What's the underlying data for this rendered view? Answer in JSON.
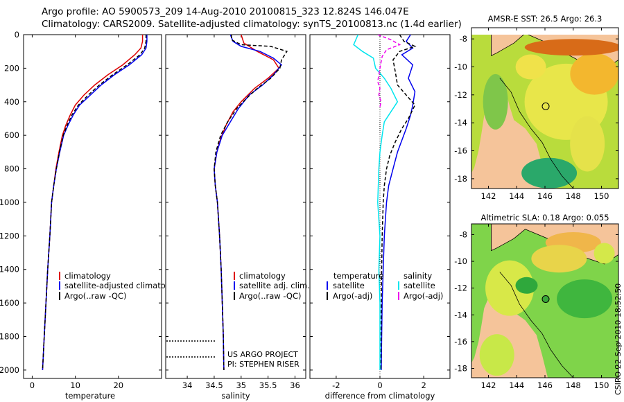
{
  "header": {
    "title_line1": "Argo profile: AO 5900573_209 14-Aug-2010 20100815_323 12.824S 146.047E",
    "title_line2": "Climatology: CARS2009. Satellite-adjusted climatology: synTS_20100813.nc (1.4d earlier)"
  },
  "credit": "CSIRO 22-Sep-2010 18:52:50",
  "depth_axis": {
    "range": [
      0,
      2050
    ],
    "ticks": [
      0,
      200,
      400,
      600,
      800,
      1000,
      1200,
      1400,
      1600,
      1800,
      2000
    ]
  },
  "colors": {
    "climatology": "#dd0000",
    "satellite": "#0000ee",
    "argo": "#000000",
    "sat_cyan": "#00e5ee",
    "argo_magenta": "#ee00ee",
    "land": "#f5c49a"
  },
  "chart_data": [
    {
      "type": "line",
      "id": "temperature",
      "xlabel": "temperature",
      "xlim": [
        -2,
        30
      ],
      "xticks": [
        0,
        10,
        20
      ],
      "legend": [
        "climatology",
        "satellite-adjusted climatology",
        "Argo(..raw -QC)"
      ],
      "series": [
        {
          "name": "climatology",
          "color": "#dd0000",
          "width": 1.5,
          "points": [
            [
              25.6,
              0
            ],
            [
              25.6,
              40
            ],
            [
              25.2,
              80
            ],
            [
              23.8,
              120
            ],
            [
              21.0,
              180
            ],
            [
              17.5,
              240
            ],
            [
              14.5,
              300
            ],
            [
              12.0,
              360
            ],
            [
              10.0,
              420
            ],
            [
              8.8,
              480
            ],
            [
              7.8,
              540
            ],
            [
              7.0,
              600
            ],
            [
              6.2,
              700
            ],
            [
              5.5,
              800
            ],
            [
              5.0,
              900
            ],
            [
              4.5,
              1000
            ],
            [
              4.1,
              1200
            ],
            [
              3.6,
              1400
            ],
            [
              3.2,
              1600
            ],
            [
              2.8,
              1800
            ],
            [
              2.4,
              2000
            ]
          ]
        },
        {
          "name": "satellite-adjusted climatology",
          "color": "#0000ee",
          "width": 1.5,
          "points": [
            [
              26.6,
              0
            ],
            [
              26.6,
              40
            ],
            [
              26.4,
              80
            ],
            [
              25.4,
              120
            ],
            [
              22.5,
              180
            ],
            [
              19.0,
              240
            ],
            [
              16.0,
              300
            ],
            [
              13.5,
              360
            ],
            [
              11.0,
              420
            ],
            [
              9.5,
              480
            ],
            [
              8.3,
              540
            ],
            [
              7.3,
              600
            ],
            [
              6.4,
              700
            ],
            [
              5.6,
              800
            ],
            [
              5.0,
              900
            ],
            [
              4.5,
              1000
            ],
            [
              4.1,
              1200
            ],
            [
              3.6,
              1400
            ],
            [
              3.2,
              1600
            ],
            [
              2.8,
              1800
            ],
            [
              2.4,
              2000
            ]
          ]
        },
        {
          "name": "Argo(..raw -QC)",
          "color": "#000000",
          "width": 1.5,
          "dash": "5,3",
          "points": [
            [
              26.4,
              0
            ],
            [
              26.4,
              40
            ],
            [
              26.1,
              80
            ],
            [
              25.0,
              120
            ],
            [
              22.0,
              180
            ],
            [
              18.6,
              240
            ],
            [
              15.6,
              300
            ],
            [
              13.0,
              360
            ],
            [
              10.7,
              420
            ],
            [
              9.2,
              480
            ],
            [
              8.1,
              540
            ],
            [
              7.2,
              600
            ],
            [
              6.3,
              700
            ],
            [
              5.6,
              800
            ],
            [
              5.0,
              900
            ],
            [
              4.5,
              1000
            ],
            [
              4.1,
              1200
            ],
            [
              3.6,
              1400
            ],
            [
              3.2,
              1600
            ],
            [
              2.8,
              1800
            ],
            [
              2.4,
              2000
            ]
          ]
        }
      ]
    },
    {
      "type": "line",
      "id": "salinity",
      "xlabel": "salinity",
      "xlim": [
        33.6,
        36.2
      ],
      "xticks": [
        34,
        34.5,
        35,
        35.5,
        36
      ],
      "tick_labels": [
        "34",
        "34.5",
        "35",
        "35.5",
        "36"
      ],
      "legend": [
        "climatology",
        "satellite adj. clim.",
        "Argo(..raw -QC)"
      ],
      "annotation": [
        "US ARGO PROJECT",
        "PI: STEPHEN RISER"
      ],
      "series": [
        {
          "name": "climatology",
          "color": "#dd0000",
          "width": 1.5,
          "points": [
            [
              35.0,
              0
            ],
            [
              35.05,
              50
            ],
            [
              35.3,
              100
            ],
            [
              35.6,
              150
            ],
            [
              35.7,
              200
            ],
            [
              35.5,
              260
            ],
            [
              35.25,
              320
            ],
            [
              35.0,
              400
            ],
            [
              34.85,
              460
            ],
            [
              34.72,
              540
            ],
            [
              34.62,
              620
            ],
            [
              34.55,
              700
            ],
            [
              34.5,
              800
            ],
            [
              34.52,
              900
            ],
            [
              34.56,
              1000
            ],
            [
              34.6,
              1200
            ],
            [
              34.63,
              1400
            ],
            [
              34.65,
              1600
            ],
            [
              34.67,
              1800
            ],
            [
              34.68,
              2000
            ]
          ]
        },
        {
          "name": "satellite adj. clim.",
          "color": "#0000ee",
          "width": 1.5,
          "points": [
            [
              34.8,
              0
            ],
            [
              34.85,
              40
            ],
            [
              35.0,
              70
            ],
            [
              35.35,
              100
            ],
            [
              35.6,
              140
            ],
            [
              35.75,
              180
            ],
            [
              35.6,
              240
            ],
            [
              35.4,
              300
            ],
            [
              35.15,
              360
            ],
            [
              34.95,
              440
            ],
            [
              34.8,
              520
            ],
            [
              34.65,
              600
            ],
            [
              34.55,
              700
            ],
            [
              34.5,
              800
            ],
            [
              34.52,
              900
            ],
            [
              34.56,
              1000
            ],
            [
              34.6,
              1200
            ],
            [
              34.63,
              1400
            ],
            [
              34.65,
              1600
            ],
            [
              34.67,
              1800
            ],
            [
              34.68,
              2000
            ]
          ]
        },
        {
          "name": "Argo(..raw -QC)",
          "color": "#000000",
          "width": 1.5,
          "dash": "5,3",
          "points": [
            [
              34.82,
              0
            ],
            [
              34.82,
              30
            ],
            [
              35.0,
              60
            ],
            [
              35.55,
              70
            ],
            [
              35.85,
              100
            ],
            [
              35.75,
              150
            ],
            [
              35.72,
              200
            ],
            [
              35.55,
              260
            ],
            [
              35.3,
              320
            ],
            [
              35.1,
              380
            ],
            [
              34.92,
              440
            ],
            [
              34.75,
              520
            ],
            [
              34.62,
              600
            ],
            [
              34.53,
              700
            ],
            [
              34.5,
              800
            ],
            [
              34.52,
              900
            ],
            [
              34.56,
              1000
            ],
            [
              34.6,
              1200
            ],
            [
              34.63,
              1400
            ],
            [
              34.65,
              1600
            ],
            [
              34.67,
              1800
            ],
            [
              34.68,
              2000
            ]
          ]
        }
      ]
    },
    {
      "type": "line",
      "id": "difference",
      "xlabel": "difference from climatology",
      "xlim": [
        -3.2,
        3.2
      ],
      "xticks": [
        -2,
        0,
        2
      ],
      "legend_left": [
        "temperature",
        "satellite",
        "Argo(-adj)"
      ],
      "legend_right": [
        "salinity",
        "satellite",
        "Argo(-adj)"
      ],
      "series": [
        {
          "name": "temperature satellite",
          "color": "#0000ee",
          "width": 1.5,
          "points": [
            [
              1.4,
              0
            ],
            [
              1.2,
              40
            ],
            [
              1.5,
              80
            ],
            [
              1.0,
              120
            ],
            [
              1.5,
              180
            ],
            [
              1.3,
              260
            ],
            [
              1.6,
              340
            ],
            [
              1.5,
              420
            ],
            [
              1.4,
              480
            ],
            [
              1.2,
              560
            ],
            [
              0.8,
              700
            ],
            [
              0.6,
              800
            ],
            [
              0.4,
              900
            ],
            [
              0.3,
              1000
            ],
            [
              0.2,
              1200
            ],
            [
              0.15,
              1400
            ],
            [
              0.1,
              1600
            ],
            [
              0.08,
              1800
            ],
            [
              0.06,
              2000
            ]
          ]
        },
        {
          "name": "temperature Argo(-adj)",
          "color": "#000000",
          "width": 1.5,
          "dash": "5,3",
          "points": [
            [
              0.9,
              0
            ],
            [
              1.1,
              40
            ],
            [
              1.6,
              70
            ],
            [
              0.9,
              100
            ],
            [
              0.6,
              150
            ],
            [
              0.7,
              220
            ],
            [
              0.8,
              300
            ],
            [
              1.2,
              360
            ],
            [
              1.6,
              420
            ],
            [
              1.3,
              500
            ],
            [
              1.0,
              560
            ],
            [
              0.7,
              640
            ],
            [
              0.45,
              720
            ],
            [
              0.3,
              800
            ],
            [
              0.2,
              900
            ],
            [
              0.15,
              1000
            ],
            [
              0.1,
              1200
            ],
            [
              0.08,
              1400
            ],
            [
              0.06,
              1600
            ],
            [
              0.05,
              1800
            ],
            [
              0.04,
              2000
            ]
          ]
        },
        {
          "name": "salinity satellite",
          "color": "#00e5ee",
          "width": 1.5,
          "points": [
            [
              -1.0,
              0
            ],
            [
              -1.2,
              60
            ],
            [
              -0.8,
              100
            ],
            [
              -0.3,
              140
            ],
            [
              -0.2,
              200
            ],
            [
              0.2,
              260
            ],
            [
              0.5,
              320
            ],
            [
              0.8,
              400
            ],
            [
              0.5,
              460
            ],
            [
              0.2,
              520
            ],
            [
              0.1,
              600
            ],
            [
              0.0,
              700
            ],
            [
              -0.05,
              800
            ],
            [
              -0.1,
              1000
            ],
            [
              0.0,
              1200
            ],
            [
              -0.05,
              1400
            ],
            [
              0.0,
              1600
            ],
            [
              0.0,
              1800
            ],
            [
              0.0,
              2000
            ]
          ]
        },
        {
          "name": "salinity Argo(-adj)",
          "color": "#ee00ee",
          "width": 1.5,
          "dash": "5,3",
          "points": [
            [
              -0.1,
              0
            ],
            [
              0.5,
              30
            ],
            [
              0.9,
              60
            ],
            [
              0.3,
              90
            ],
            [
              0.1,
              130
            ],
            [
              0.0,
              200
            ],
            [
              -0.1,
              280
            ],
            [
              0.0,
              320
            ],
            [
              -0.05,
              360
            ],
            [
              0.05,
              400
            ],
            [
              0.0,
              430
            ]
          ]
        }
      ]
    },
    {
      "type": "heatmap",
      "id": "sst_map",
      "title": "AMSR-E SST: 26.5 Argo: 26.3",
      "xlim": [
        140.8,
        151.2
      ],
      "ylim": [
        -18.7,
        -7.2
      ],
      "xticks": [
        142,
        144,
        146,
        148,
        150
      ],
      "yticks": [
        -8,
        -10,
        -12,
        -14,
        -16,
        -18
      ],
      "argo_position": [
        146.05,
        -12.82
      ]
    },
    {
      "type": "heatmap",
      "id": "sla_map",
      "title": "Altimetric SLA: 0.18 Argo: 0.055",
      "xlim": [
        140.8,
        151.2
      ],
      "ylim": [
        -18.7,
        -7.2
      ],
      "xticks": [
        142,
        144,
        146,
        148,
        150
      ],
      "yticks": [
        -8,
        -10,
        -12,
        -14,
        -16,
        -18
      ],
      "argo_position": [
        146.05,
        -12.82
      ]
    }
  ]
}
